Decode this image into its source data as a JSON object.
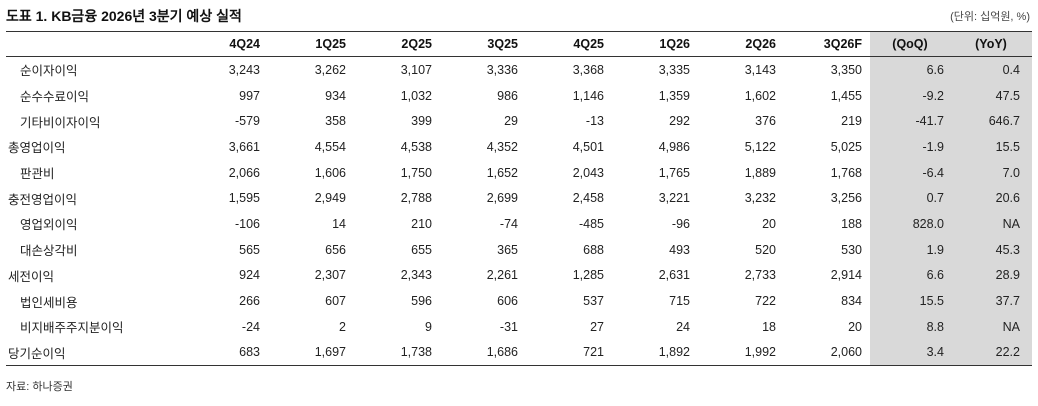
{
  "header": {
    "title": "도표 1. KB금융 2026년 3분기 예상 실적",
    "unit": "(단위: 십억원, %)"
  },
  "table": {
    "columns": [
      "4Q24",
      "1Q25",
      "2Q25",
      "3Q25",
      "4Q25",
      "1Q26",
      "2Q26",
      "3Q26F",
      "(QoQ)",
      "(YoY)"
    ],
    "rows": [
      {
        "label": "순이자이익",
        "level": 1,
        "values": [
          "3,243",
          "3,262",
          "3,107",
          "3,336",
          "3,368",
          "3,335",
          "3,143",
          "3,350",
          "6.6",
          "0.4"
        ]
      },
      {
        "label": "순수수료이익",
        "level": 1,
        "values": [
          "997",
          "934",
          "1,032",
          "986",
          "1,146",
          "1,359",
          "1,602",
          "1,455",
          "-9.2",
          "47.5"
        ]
      },
      {
        "label": "기타비이자이익",
        "level": 1,
        "values": [
          "-579",
          "358",
          "399",
          "29",
          "-13",
          "292",
          "376",
          "219",
          "-41.7",
          "646.7"
        ]
      },
      {
        "label": "총영업이익",
        "level": 0,
        "values": [
          "3,661",
          "4,554",
          "4,538",
          "4,352",
          "4,501",
          "4,986",
          "5,122",
          "5,025",
          "-1.9",
          "15.5"
        ]
      },
      {
        "label": "판관비",
        "level": 1,
        "values": [
          "2,066",
          "1,606",
          "1,750",
          "1,652",
          "2,043",
          "1,765",
          "1,889",
          "1,768",
          "-6.4",
          "7.0"
        ]
      },
      {
        "label": "충전영업이익",
        "level": 0,
        "values": [
          "1,595",
          "2,949",
          "2,788",
          "2,699",
          "2,458",
          "3,221",
          "3,232",
          "3,256",
          "0.7",
          "20.6"
        ]
      },
      {
        "label": "영업외이익",
        "level": 1,
        "values": [
          "-106",
          "14",
          "210",
          "-74",
          "-485",
          "-96",
          "20",
          "188",
          "828.0",
          "NA"
        ]
      },
      {
        "label": "대손상각비",
        "level": 1,
        "values": [
          "565",
          "656",
          "655",
          "365",
          "688",
          "493",
          "520",
          "530",
          "1.9",
          "45.3"
        ]
      },
      {
        "label": "세전이익",
        "level": 0,
        "values": [
          "924",
          "2,307",
          "2,343",
          "2,261",
          "1,285",
          "2,631",
          "2,733",
          "2,914",
          "6.6",
          "28.9"
        ]
      },
      {
        "label": "법인세비용",
        "level": 1,
        "values": [
          "266",
          "607",
          "596",
          "606",
          "537",
          "715",
          "722",
          "834",
          "15.5",
          "37.7"
        ]
      },
      {
        "label": "비지배주주지분이익",
        "level": 1,
        "values": [
          "-24",
          "2",
          "9",
          "-31",
          "27",
          "24",
          "18",
          "20",
          "8.8",
          "NA"
        ]
      },
      {
        "label": "당기순이익",
        "level": 0,
        "values": [
          "683",
          "1,697",
          "1,738",
          "1,686",
          "721",
          "1,892",
          "1,992",
          "2,060",
          "3.4",
          "22.2"
        ]
      }
    ]
  },
  "footer": {
    "source": "자료: 하나증권"
  }
}
